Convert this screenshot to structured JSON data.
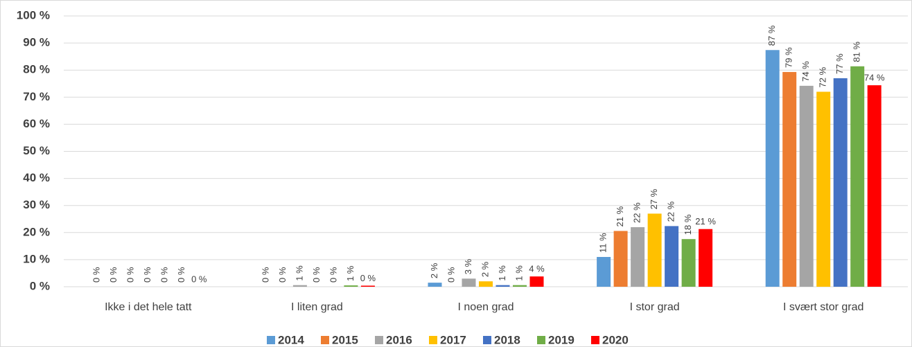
{
  "chart_data": {
    "type": "bar",
    "categories": [
      "Ikke i det hele tatt",
      "I liten grad",
      "I noen grad",
      "I stor grad",
      "I svært stor grad"
    ],
    "series": [
      {
        "name": "2014",
        "color": "#5b9bd5",
        "values": [
          0,
          0,
          1.5,
          11,
          87.4
        ],
        "value_labels": [
          "0 %",
          "0 %",
          "2 %",
          "11 %",
          "87 %"
        ]
      },
      {
        "name": "2015",
        "color": "#ed7d31",
        "values": [
          0,
          0,
          0,
          20.6,
          79.3
        ],
        "value_labels": [
          "0 %",
          "0 %",
          "0 %",
          "21 %",
          "79 %"
        ]
      },
      {
        "name": "2016",
        "color": "#a5a5a5",
        "values": [
          0,
          0.6,
          3,
          22,
          74.2
        ],
        "value_labels": [
          "0 %",
          "1 %",
          "3 %",
          "22 %",
          "74 %"
        ]
      },
      {
        "name": "2017",
        "color": "#ffc000",
        "values": [
          0,
          0,
          2,
          27,
          72
        ],
        "value_labels": [
          "0 %",
          "0 %",
          "2 %",
          "27 %",
          "72 %"
        ]
      },
      {
        "name": "2018",
        "color": "#4472c4",
        "values": [
          0,
          0,
          0.6,
          22.4,
          77
        ],
        "value_labels": [
          "0 %",
          "0 %",
          "1 %",
          "22 %",
          "77 %"
        ]
      },
      {
        "name": "2019",
        "color": "#70ad47",
        "values": [
          0,
          0.5,
          0.6,
          17.6,
          81.4
        ],
        "value_labels": [
          "0 %",
          "1 %",
          "1 %",
          "18 %",
          "81 %"
        ]
      },
      {
        "name": "2020",
        "color": "#ff0000",
        "values": [
          0,
          0.4,
          3.8,
          21.3,
          74.4
        ],
        "value_labels": [
          "0 %",
          "0 %",
          "4 %",
          "21 %",
          "74 %"
        ]
      }
    ],
    "ylim": [
      0,
      100
    ],
    "yticks": [
      {
        "value": 0,
        "label": "0 %"
      },
      {
        "value": 10,
        "label": "10 %"
      },
      {
        "value": 20,
        "label": "20 %"
      },
      {
        "value": 30,
        "label": "30 %"
      },
      {
        "value": 40,
        "label": "40 %"
      },
      {
        "value": 50,
        "label": "50 %"
      },
      {
        "value": 60,
        "label": "60 %"
      },
      {
        "value": 70,
        "label": "70 %"
      },
      {
        "value": 80,
        "label": "80 %"
      },
      {
        "value": 90,
        "label": "90 %"
      },
      {
        "value": 100,
        "label": "100 %"
      }
    ],
    "grid": true,
    "legend": "bottom"
  }
}
